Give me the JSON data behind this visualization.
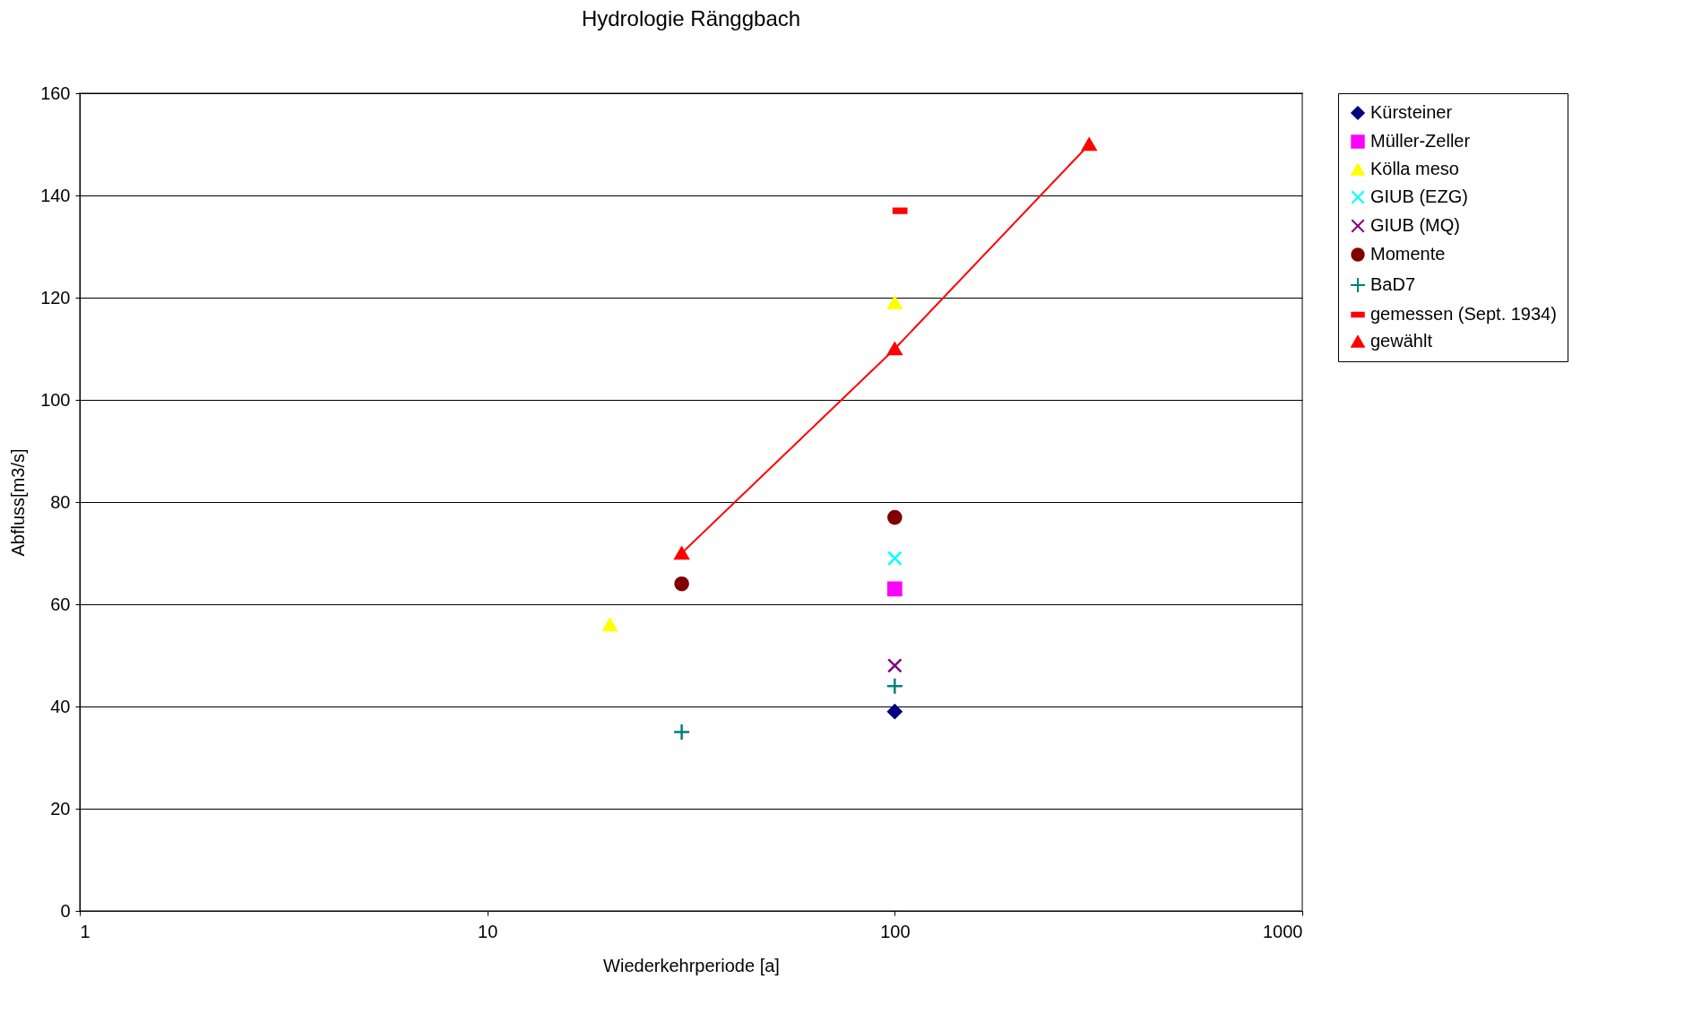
{
  "chart_data": {
    "type": "scatter",
    "title": "Hydrologie Ränggbach",
    "xlabel": "Wiederkehrperiode [a]",
    "ylabel": "Abfluss[m3/s]",
    "log": "x",
    "xlim": [
      1,
      1000
    ],
    "xticks": [
      1,
      10,
      100,
      1000
    ],
    "ylim": [
      0,
      160
    ],
    "yticks": [
      0,
      20,
      40,
      60,
      80,
      100,
      120,
      140,
      160
    ],
    "grid": "y",
    "legend": "right",
    "series": [
      {
        "name": "Kürsteiner",
        "color": "#000080",
        "marker": "diamond",
        "x": [
          100
        ],
        "values": [
          39
        ]
      },
      {
        "name": "Müller-Zeller",
        "color": "#ff00ff",
        "marker": "square",
        "x": [
          100
        ],
        "values": [
          63
        ]
      },
      {
        "name": "Kölla meso",
        "color": "#ffff00",
        "marker": "triangle",
        "x": [
          20,
          100
        ],
        "values": [
          56,
          119
        ]
      },
      {
        "name": "GIUB (EZG)",
        "color": "#00ffff",
        "marker": "cross",
        "x": [
          100
        ],
        "values": [
          69
        ]
      },
      {
        "name": "GIUB (MQ)",
        "color": "#800080",
        "marker": "cross",
        "x": [
          100
        ],
        "values": [
          48
        ]
      },
      {
        "name": "Momente",
        "color": "#800000",
        "marker": "circle",
        "x": [
          30,
          100
        ],
        "values": [
          64,
          77
        ]
      },
      {
        "name": "BaD7",
        "color": "#008080",
        "marker": "plus",
        "x": [
          30,
          100
        ],
        "values": [
          35,
          44
        ]
      },
      {
        "name": "gemessen (Sept. 1934)",
        "color": "#ff0000",
        "x": [
          103
        ],
        "values": [
          137
        ]
      },
      {
        "name": "gewählt",
        "type": "line",
        "line_style": "solid",
        "color": "#ff0000",
        "marker": "triangle",
        "x": [
          30,
          100,
          300
        ],
        "values": [
          70,
          110,
          150
        ]
      }
    ]
  }
}
